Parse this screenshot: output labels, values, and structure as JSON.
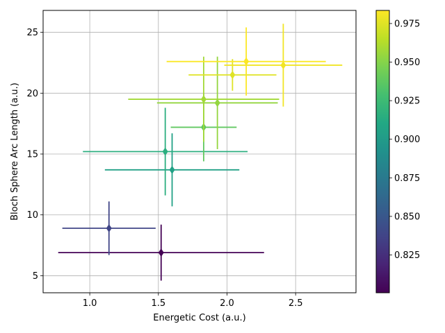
{
  "chart_data": {
    "type": "scatter",
    "xlabel": "Energetic Cost (a.u.)",
    "ylabel": "Bloch Sphere Arc Length (a.u.)",
    "xlim": [
      0.66,
      2.94
    ],
    "ylim": [
      3.6,
      26.8
    ],
    "xticks": [
      "1.0",
      "1.5",
      "2.0",
      "2.5"
    ],
    "xtick_values": [
      1.0,
      1.5,
      2.0,
      2.5
    ],
    "yticks": [
      "5",
      "10",
      "15",
      "20",
      "25"
    ],
    "ytick_values": [
      5,
      10,
      15,
      20,
      25
    ],
    "grid": true,
    "colorbar": {
      "colormap": "viridis",
      "range": [
        0.8005,
        0.9835
      ],
      "ticks": [
        "0.825",
        "0.850",
        "0.875",
        "0.900",
        "0.925",
        "0.950",
        "0.975"
      ],
      "tick_values": [
        0.825,
        0.85,
        0.875,
        0.9,
        0.925,
        0.95,
        0.975
      ]
    },
    "points": [
      {
        "x": 1.52,
        "y": 6.9,
        "xerr": 0.75,
        "yerr": 2.3,
        "c": 0.801
      },
      {
        "x": 1.14,
        "y": 8.9,
        "xerr": 0.34,
        "yerr": 2.2,
        "c": 0.838
      },
      {
        "x": 1.6,
        "y": 13.7,
        "xerr": 0.49,
        "yerr": 3.0,
        "c": 0.905
      },
      {
        "x": 1.55,
        "y": 15.2,
        "xerr": 0.6,
        "yerr": 3.6,
        "c": 0.915
      },
      {
        "x": 1.83,
        "y": 17.2,
        "xerr": 0.24,
        "yerr": 2.8,
        "c": 0.938
      },
      {
        "x": 1.93,
        "y": 19.2,
        "xerr": 0.44,
        "yerr": 3.8,
        "c": 0.954
      },
      {
        "x": 1.83,
        "y": 19.5,
        "xerr": 0.55,
        "yerr": 3.5,
        "c": 0.958
      },
      {
        "x": 2.04,
        "y": 21.5,
        "xerr": 0.32,
        "yerr": 1.3,
        "c": 0.975
      },
      {
        "x": 2.41,
        "y": 22.3,
        "xerr": 0.43,
        "yerr": 3.4,
        "c": 0.98
      },
      {
        "x": 2.14,
        "y": 22.6,
        "xerr": 0.58,
        "yerr": 2.8,
        "c": 0.983
      }
    ]
  }
}
